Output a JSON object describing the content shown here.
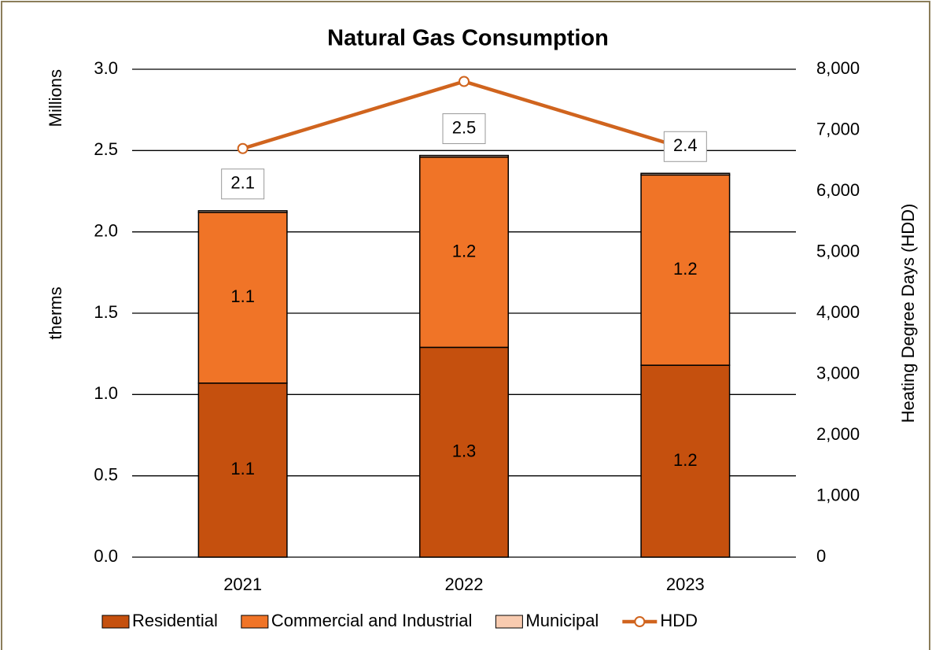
{
  "chart_data": {
    "type": "bar",
    "stacked": true,
    "title": "Natural Gas Consumption",
    "y_unit_label": "Millions",
    "ylabel": "therms",
    "y2label": "Heating Degree Days (HDD)",
    "categories": [
      "2021",
      "2022",
      "2023"
    ],
    "series": [
      {
        "name": "Residential",
        "color": "#c5500e",
        "values": [
          1.07,
          1.29,
          1.18
        ],
        "value_labels": [
          "1.1",
          "1.3",
          "1.2"
        ]
      },
      {
        "name": "Commercial and Industrial",
        "color": "#f07427",
        "values": [
          1.05,
          1.17,
          1.17
        ],
        "value_labels": [
          "1.1",
          "1.2",
          "1.2"
        ]
      },
      {
        "name": "Municipal",
        "color": "#f8cbb0",
        "values": [
          0.01,
          0.01,
          0.01
        ]
      },
      {
        "name": "HDD",
        "type": "line",
        "axis": "y2",
        "color": "#d0641e",
        "values": [
          6700,
          7800,
          6700
        ]
      }
    ],
    "total_labels": [
      "2.1",
      "2.5",
      "2.4"
    ],
    "ylim": [
      0,
      3
    ],
    "yticks": [
      {
        "value": 0,
        "label": "0.0"
      },
      {
        "value": 0.5,
        "label": "0.5"
      },
      {
        "value": 1,
        "label": "1.0"
      },
      {
        "value": 1.5,
        "label": "1.5"
      },
      {
        "value": 2,
        "label": "2.0"
      },
      {
        "value": 2.5,
        "label": "2.5"
      },
      {
        "value": 3,
        "label": "3.0"
      }
    ],
    "y2lim": [
      0,
      8000
    ],
    "y2ticks": [
      0,
      {
        "value": 1000,
        "label": "1,000"
      },
      {
        "value": 2000,
        "label": "2,000"
      },
      {
        "value": 3000,
        "label": "3,000"
      },
      {
        "value": 4000,
        "label": "4,000"
      },
      {
        "value": 5000,
        "label": "5,000"
      },
      {
        "value": 6000,
        "label": "6,000"
      },
      {
        "value": 7000,
        "label": "7,000"
      },
      {
        "value": 8000,
        "label": "8,000"
      }
    ],
    "grid": true,
    "legend": "bottom"
  }
}
